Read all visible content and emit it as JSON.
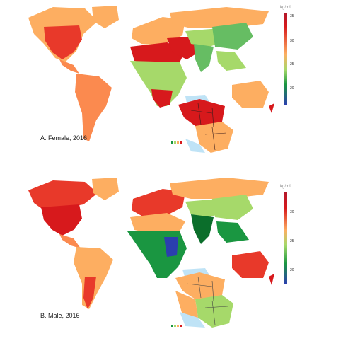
{
  "panels": {
    "a": {
      "title": "A. Female, 2016",
      "unit": "kg/m²",
      "ticks": [
        "35",
        "30",
        "25",
        "20"
      ]
    },
    "b": {
      "title": "B. Male, 2016",
      "unit": "kg/m²",
      "ticks": [
        "30",
        "25",
        "20"
      ]
    }
  },
  "colors": {
    "red": "#d7191c",
    "orange": "#fdae61",
    "yellow": "#f5e39a",
    "lightgreen": "#a6d96a",
    "green": "#1a9641",
    "darkgreen": "#0b6e2b",
    "blue": "#2b3fae",
    "lightblue": "#bfe3f6",
    "darkred": "#b2182b"
  }
}
